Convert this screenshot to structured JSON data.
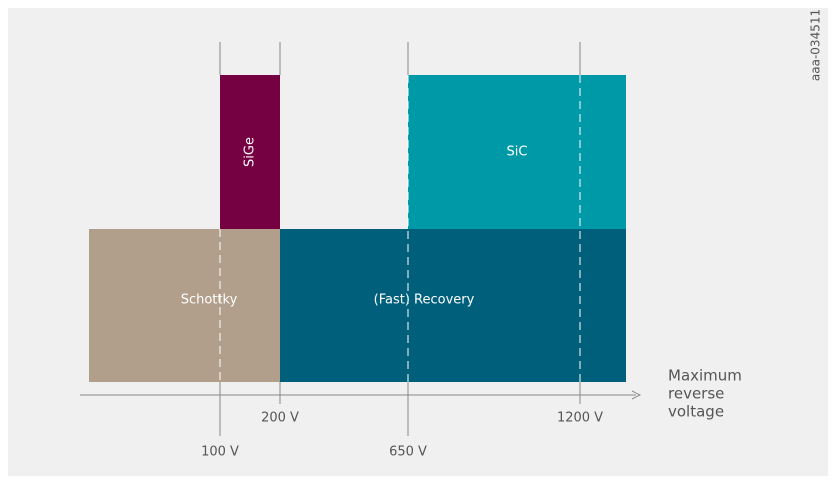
{
  "figure_id": "aaa-034511",
  "regions": [
    {
      "label": "SiGe"
    },
    {
      "label": "SiC"
    },
    {
      "label": "Schottky"
    },
    {
      "label": "(Fast) Recovery"
    }
  ],
  "axis": {
    "label_lines": [
      "Maximum",
      "reverse",
      "voltage"
    ],
    "ticks": [
      "100 V",
      "200 V",
      "650 V",
      "1200 V"
    ]
  }
}
